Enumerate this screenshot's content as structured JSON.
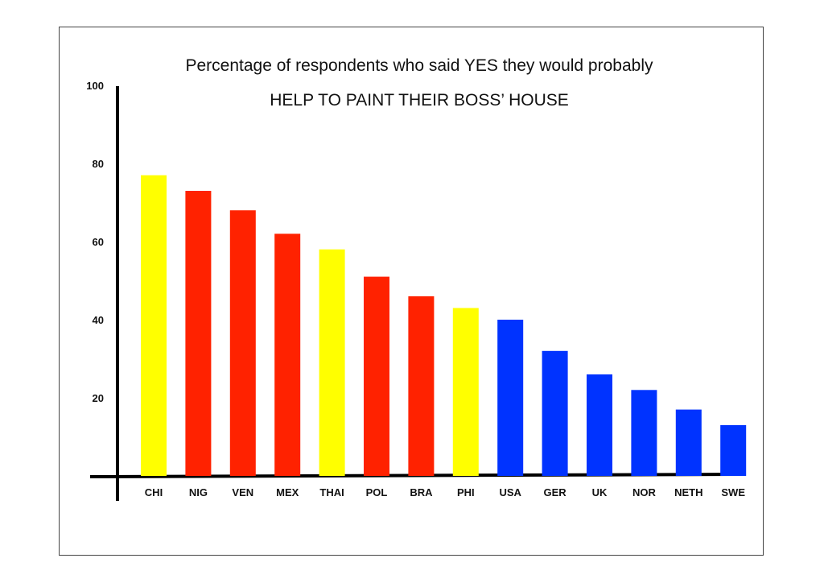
{
  "chart_data": {
    "type": "bar",
    "title": "Percentage of respondents who said YES they would probably",
    "subtitle": "HELP TO PAINT THEIR BOSS’ HOUSE",
    "xlabel": "",
    "ylabel": "",
    "ylim": [
      0,
      100
    ],
    "grid": false,
    "yticks": [
      {
        "value": 100,
        "label": "100"
      },
      {
        "value": 80,
        "label": "80"
      },
      {
        "value": 60,
        "label": "60"
      },
      {
        "value": 40,
        "label": "40"
      },
      {
        "value": 20,
        "label": "20"
      }
    ],
    "categories": [
      "CHI",
      "NIG",
      "VEN",
      "MEX",
      "THAI",
      "POL",
      "BRA",
      "PHI",
      "USA",
      "GER",
      "UK",
      "NOR",
      "NETH",
      "SWE"
    ],
    "values": [
      77,
      73,
      68,
      62,
      58,
      51,
      46,
      43,
      40,
      32,
      26,
      22,
      17,
      13
    ],
    "bar_colors": [
      "#ffff00",
      "#ff2200",
      "#ff2200",
      "#ff2200",
      "#ffff00",
      "#ff2200",
      "#ff2200",
      "#ffff00",
      "#0033ff",
      "#0033ff",
      "#0033ff",
      "#0033ff",
      "#0033ff",
      "#0033ff"
    ]
  }
}
